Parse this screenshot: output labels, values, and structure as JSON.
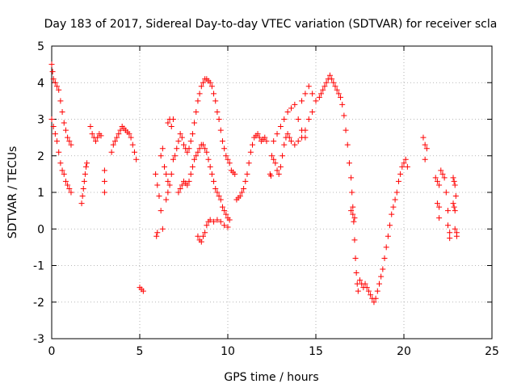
{
  "chart_data": {
    "type": "scatter",
    "title": "Day 183 of 2017, Sidereal Day-to-day VTEC variation (SDTVAR) for receiver scla",
    "xlabel": "GPS time / hours",
    "ylabel": "SDTVAR / TECUs",
    "xlim": [
      0,
      25
    ],
    "ylim": [
      -3,
      5
    ],
    "xticks": [
      0,
      5,
      10,
      15,
      20,
      25
    ],
    "yticks": [
      -3,
      -2,
      -1,
      0,
      1,
      2,
      3,
      4,
      5
    ],
    "grid": true,
    "marker": "+",
    "color": "#ff0000",
    "series": [
      {
        "name": "SDTVAR",
        "points": [
          [
            0.0,
            4.5
          ],
          [
            0.05,
            4.3
          ],
          [
            0.1,
            4.1
          ],
          [
            0.2,
            4.0
          ],
          [
            0.3,
            3.9
          ],
          [
            0.4,
            3.8
          ],
          [
            0.5,
            3.5
          ],
          [
            0.6,
            3.2
          ],
          [
            0.7,
            2.9
          ],
          [
            0.8,
            2.7
          ],
          [
            0.9,
            2.5
          ],
          [
            1.0,
            2.4
          ],
          [
            1.1,
            2.3
          ],
          [
            0.0,
            3.0
          ],
          [
            0.1,
            2.8
          ],
          [
            0.2,
            2.6
          ],
          [
            0.3,
            2.4
          ],
          [
            0.4,
            2.1
          ],
          [
            0.5,
            1.8
          ],
          [
            0.6,
            1.6
          ],
          [
            0.7,
            1.5
          ],
          [
            0.8,
            1.3
          ],
          [
            0.9,
            1.2
          ],
          [
            1.0,
            1.1
          ],
          [
            1.1,
            1.0
          ],
          [
            1.7,
            0.7
          ],
          [
            1.75,
            0.9
          ],
          [
            1.8,
            1.1
          ],
          [
            1.85,
            1.3
          ],
          [
            1.9,
            1.5
          ],
          [
            1.95,
            1.7
          ],
          [
            2.0,
            1.8
          ],
          [
            2.2,
            2.8
          ],
          [
            2.3,
            2.6
          ],
          [
            2.4,
            2.5
          ],
          [
            2.5,
            2.4
          ],
          [
            2.6,
            2.5
          ],
          [
            2.7,
            2.6
          ],
          [
            2.8,
            2.55
          ],
          [
            3.0,
            1.6
          ],
          [
            3.0,
            1.3
          ],
          [
            3.0,
            1.0
          ],
          [
            3.4,
            2.1
          ],
          [
            3.5,
            2.3
          ],
          [
            3.6,
            2.4
          ],
          [
            3.7,
            2.5
          ],
          [
            3.8,
            2.6
          ],
          [
            3.9,
            2.7
          ],
          [
            4.0,
            2.8
          ],
          [
            4.1,
            2.75
          ],
          [
            4.2,
            2.7
          ],
          [
            4.3,
            2.65
          ],
          [
            4.4,
            2.6
          ],
          [
            4.5,
            2.5
          ],
          [
            4.6,
            2.3
          ],
          [
            4.7,
            2.1
          ],
          [
            4.8,
            1.9
          ],
          [
            5.0,
            -1.6
          ],
          [
            5.1,
            -1.65
          ],
          [
            5.2,
            -1.7
          ],
          [
            5.9,
            1.5
          ],
          [
            6.0,
            1.2
          ],
          [
            6.1,
            0.9
          ],
          [
            6.2,
            0.5
          ],
          [
            6.3,
            0.0
          ],
          [
            6.0,
            -0.1
          ],
          [
            5.95,
            -0.2
          ],
          [
            6.2,
            2.0
          ],
          [
            6.3,
            2.2
          ],
          [
            6.4,
            1.7
          ],
          [
            6.5,
            1.5
          ],
          [
            6.6,
            1.3
          ],
          [
            6.6,
            2.9
          ],
          [
            6.7,
            3.0
          ],
          [
            6.8,
            2.8
          ],
          [
            6.9,
            3.0
          ],
          [
            6.5,
            0.8
          ],
          [
            6.6,
            1.0
          ],
          [
            6.7,
            1.2
          ],
          [
            6.8,
            1.5
          ],
          [
            6.9,
            1.9
          ],
          [
            7.0,
            2.0
          ],
          [
            7.1,
            2.2
          ],
          [
            7.2,
            2.4
          ],
          [
            7.3,
            2.6
          ],
          [
            7.4,
            2.5
          ],
          [
            7.5,
            2.3
          ],
          [
            7.6,
            2.2
          ],
          [
            7.7,
            2.1
          ],
          [
            7.8,
            2.2
          ],
          [
            7.9,
            2.4
          ],
          [
            8.0,
            2.6
          ],
          [
            8.1,
            2.9
          ],
          [
            8.2,
            3.2
          ],
          [
            8.3,
            3.5
          ],
          [
            8.4,
            3.7
          ],
          [
            8.5,
            3.9
          ],
          [
            8.6,
            4.0
          ],
          [
            8.7,
            4.1
          ],
          [
            8.8,
            4.1
          ],
          [
            8.9,
            4.05
          ],
          [
            9.0,
            4.0
          ],
          [
            9.1,
            3.9
          ],
          [
            9.2,
            3.7
          ],
          [
            9.3,
            3.5
          ],
          [
            9.4,
            3.2
          ],
          [
            9.5,
            3.0
          ],
          [
            9.6,
            2.7
          ],
          [
            9.7,
            2.4
          ],
          [
            9.8,
            2.2
          ],
          [
            9.9,
            2.0
          ],
          [
            10.0,
            1.9
          ],
          [
            10.1,
            1.8
          ],
          [
            10.2,
            1.6
          ],
          [
            10.3,
            1.55
          ],
          [
            10.4,
            1.5
          ],
          [
            7.2,
            1.0
          ],
          [
            7.3,
            1.1
          ],
          [
            7.4,
            1.2
          ],
          [
            7.5,
            1.3
          ],
          [
            7.6,
            1.25
          ],
          [
            7.7,
            1.2
          ],
          [
            7.8,
            1.3
          ],
          [
            7.9,
            1.5
          ],
          [
            8.0,
            1.7
          ],
          [
            8.1,
            1.9
          ],
          [
            8.2,
            2.0
          ],
          [
            8.3,
            2.1
          ],
          [
            8.4,
            2.2
          ],
          [
            8.5,
            2.3
          ],
          [
            8.6,
            2.3
          ],
          [
            8.7,
            2.2
          ],
          [
            8.8,
            2.1
          ],
          [
            8.9,
            1.9
          ],
          [
            9.0,
            1.7
          ],
          [
            9.1,
            1.5
          ],
          [
            9.2,
            1.3
          ],
          [
            9.3,
            1.1
          ],
          [
            9.4,
            1.0
          ],
          [
            9.5,
            0.9
          ],
          [
            9.6,
            0.8
          ],
          [
            9.7,
            0.6
          ],
          [
            9.8,
            0.5
          ],
          [
            9.9,
            0.4
          ],
          [
            10.0,
            0.3
          ],
          [
            10.1,
            0.25
          ],
          [
            8.3,
            -0.2
          ],
          [
            8.4,
            -0.3
          ],
          [
            8.5,
            -0.35
          ],
          [
            8.6,
            -0.2
          ],
          [
            8.7,
            -0.1
          ],
          [
            8.8,
            0.1
          ],
          [
            8.9,
            0.2
          ],
          [
            9.0,
            0.25
          ],
          [
            9.2,
            0.2
          ],
          [
            9.4,
            0.25
          ],
          [
            9.6,
            0.2
          ],
          [
            9.8,
            0.1
          ],
          [
            10.0,
            0.05
          ],
          [
            10.5,
            0.8
          ],
          [
            10.6,
            0.85
          ],
          [
            10.7,
            0.9
          ],
          [
            10.8,
            1.0
          ],
          [
            10.9,
            1.1
          ],
          [
            11.0,
            1.3
          ],
          [
            11.1,
            1.5
          ],
          [
            11.2,
            1.8
          ],
          [
            11.3,
            2.1
          ],
          [
            11.4,
            2.3
          ],
          [
            11.5,
            2.5
          ],
          [
            11.6,
            2.55
          ],
          [
            11.7,
            2.6
          ],
          [
            11.8,
            2.5
          ],
          [
            11.9,
            2.4
          ],
          [
            12.0,
            2.45
          ],
          [
            12.1,
            2.5
          ],
          [
            12.2,
            2.4
          ],
          [
            12.4,
            1.5
          ],
          [
            12.45,
            1.45
          ],
          [
            12.5,
            2.0
          ],
          [
            12.6,
            1.9
          ],
          [
            12.7,
            1.8
          ],
          [
            12.8,
            1.6
          ],
          [
            12.9,
            1.5
          ],
          [
            13.0,
            1.7
          ],
          [
            13.1,
            2.0
          ],
          [
            13.2,
            2.3
          ],
          [
            13.3,
            2.5
          ],
          [
            13.4,
            2.6
          ],
          [
            13.5,
            2.5
          ],
          [
            13.6,
            2.4
          ],
          [
            12.6,
            2.4
          ],
          [
            12.8,
            2.6
          ],
          [
            13.0,
            2.8
          ],
          [
            13.2,
            3.0
          ],
          [
            13.4,
            3.2
          ],
          [
            13.6,
            3.3
          ],
          [
            13.8,
            3.4
          ],
          [
            14.0,
            3.0
          ],
          [
            14.2,
            2.7
          ],
          [
            14.4,
            2.5
          ],
          [
            13.8,
            2.3
          ],
          [
            14.0,
            2.4
          ],
          [
            14.2,
            2.5
          ],
          [
            14.4,
            2.7
          ],
          [
            14.6,
            3.0
          ],
          [
            14.8,
            3.2
          ],
          [
            14.2,
            3.5
          ],
          [
            14.4,
            3.7
          ],
          [
            14.6,
            3.9
          ],
          [
            14.8,
            3.7
          ],
          [
            15.0,
            3.5
          ],
          [
            15.2,
            3.6
          ],
          [
            15.3,
            3.7
          ],
          [
            15.4,
            3.8
          ],
          [
            15.5,
            3.9
          ],
          [
            15.6,
            4.0
          ],
          [
            15.7,
            4.1
          ],
          [
            15.8,
            4.2
          ],
          [
            15.9,
            4.1
          ],
          [
            16.0,
            4.0
          ],
          [
            16.1,
            3.9
          ],
          [
            16.2,
            3.8
          ],
          [
            16.3,
            3.7
          ],
          [
            16.4,
            3.6
          ],
          [
            16.5,
            3.4
          ],
          [
            16.6,
            3.1
          ],
          [
            16.7,
            2.7
          ],
          [
            16.8,
            2.3
          ],
          [
            16.9,
            1.8
          ],
          [
            17.0,
            1.4
          ],
          [
            17.05,
            1.0
          ],
          [
            17.1,
            0.6
          ],
          [
            17.15,
            0.2
          ],
          [
            17.2,
            -0.3
          ],
          [
            17.25,
            -0.8
          ],
          [
            17.3,
            -1.2
          ],
          [
            17.35,
            -1.5
          ],
          [
            17.4,
            -1.7
          ],
          [
            17.0,
            0.5
          ],
          [
            17.1,
            0.4
          ],
          [
            17.2,
            0.3
          ],
          [
            17.5,
            -1.4
          ],
          [
            17.6,
            -1.5
          ],
          [
            17.7,
            -1.6
          ],
          [
            17.8,
            -1.5
          ],
          [
            17.9,
            -1.6
          ],
          [
            18.0,
            -1.7
          ],
          [
            18.1,
            -1.8
          ],
          [
            18.2,
            -1.9
          ],
          [
            18.3,
            -2.0
          ],
          [
            18.4,
            -1.9
          ],
          [
            18.5,
            -1.7
          ],
          [
            18.6,
            -1.5
          ],
          [
            18.7,
            -1.3
          ],
          [
            18.8,
            -1.1
          ],
          [
            18.9,
            -0.8
          ],
          [
            19.0,
            -0.5
          ],
          [
            19.1,
            -0.2
          ],
          [
            19.2,
            0.1
          ],
          [
            19.3,
            0.4
          ],
          [
            19.4,
            0.6
          ],
          [
            19.5,
            0.8
          ],
          [
            19.6,
            1.0
          ],
          [
            19.7,
            1.3
          ],
          [
            19.8,
            1.5
          ],
          [
            19.9,
            1.7
          ],
          [
            20.0,
            1.8
          ],
          [
            20.1,
            1.9
          ],
          [
            20.2,
            1.7
          ],
          [
            21.1,
            2.5
          ],
          [
            21.2,
            2.3
          ],
          [
            21.3,
            2.2
          ],
          [
            21.2,
            1.9
          ],
          [
            21.8,
            1.4
          ],
          [
            21.9,
            1.3
          ],
          [
            22.0,
            1.2
          ],
          [
            22.1,
            1.6
          ],
          [
            22.2,
            1.5
          ],
          [
            22.3,
            1.4
          ],
          [
            21.9,
            0.7
          ],
          [
            22.0,
            0.6
          ],
          [
            22.0,
            0.3
          ],
          [
            22.4,
            1.0
          ],
          [
            22.5,
            0.5
          ],
          [
            22.5,
            0.1
          ],
          [
            22.6,
            -0.1
          ],
          [
            22.6,
            -0.25
          ],
          [
            22.8,
            1.4
          ],
          [
            22.85,
            1.3
          ],
          [
            22.9,
            1.2
          ],
          [
            22.95,
            0.9
          ],
          [
            22.8,
            0.7
          ],
          [
            22.85,
            0.6
          ],
          [
            22.9,
            0.5
          ],
          [
            22.9,
            0.0
          ],
          [
            23.0,
            -0.1
          ],
          [
            23.0,
            -0.2
          ]
        ]
      }
    ]
  }
}
